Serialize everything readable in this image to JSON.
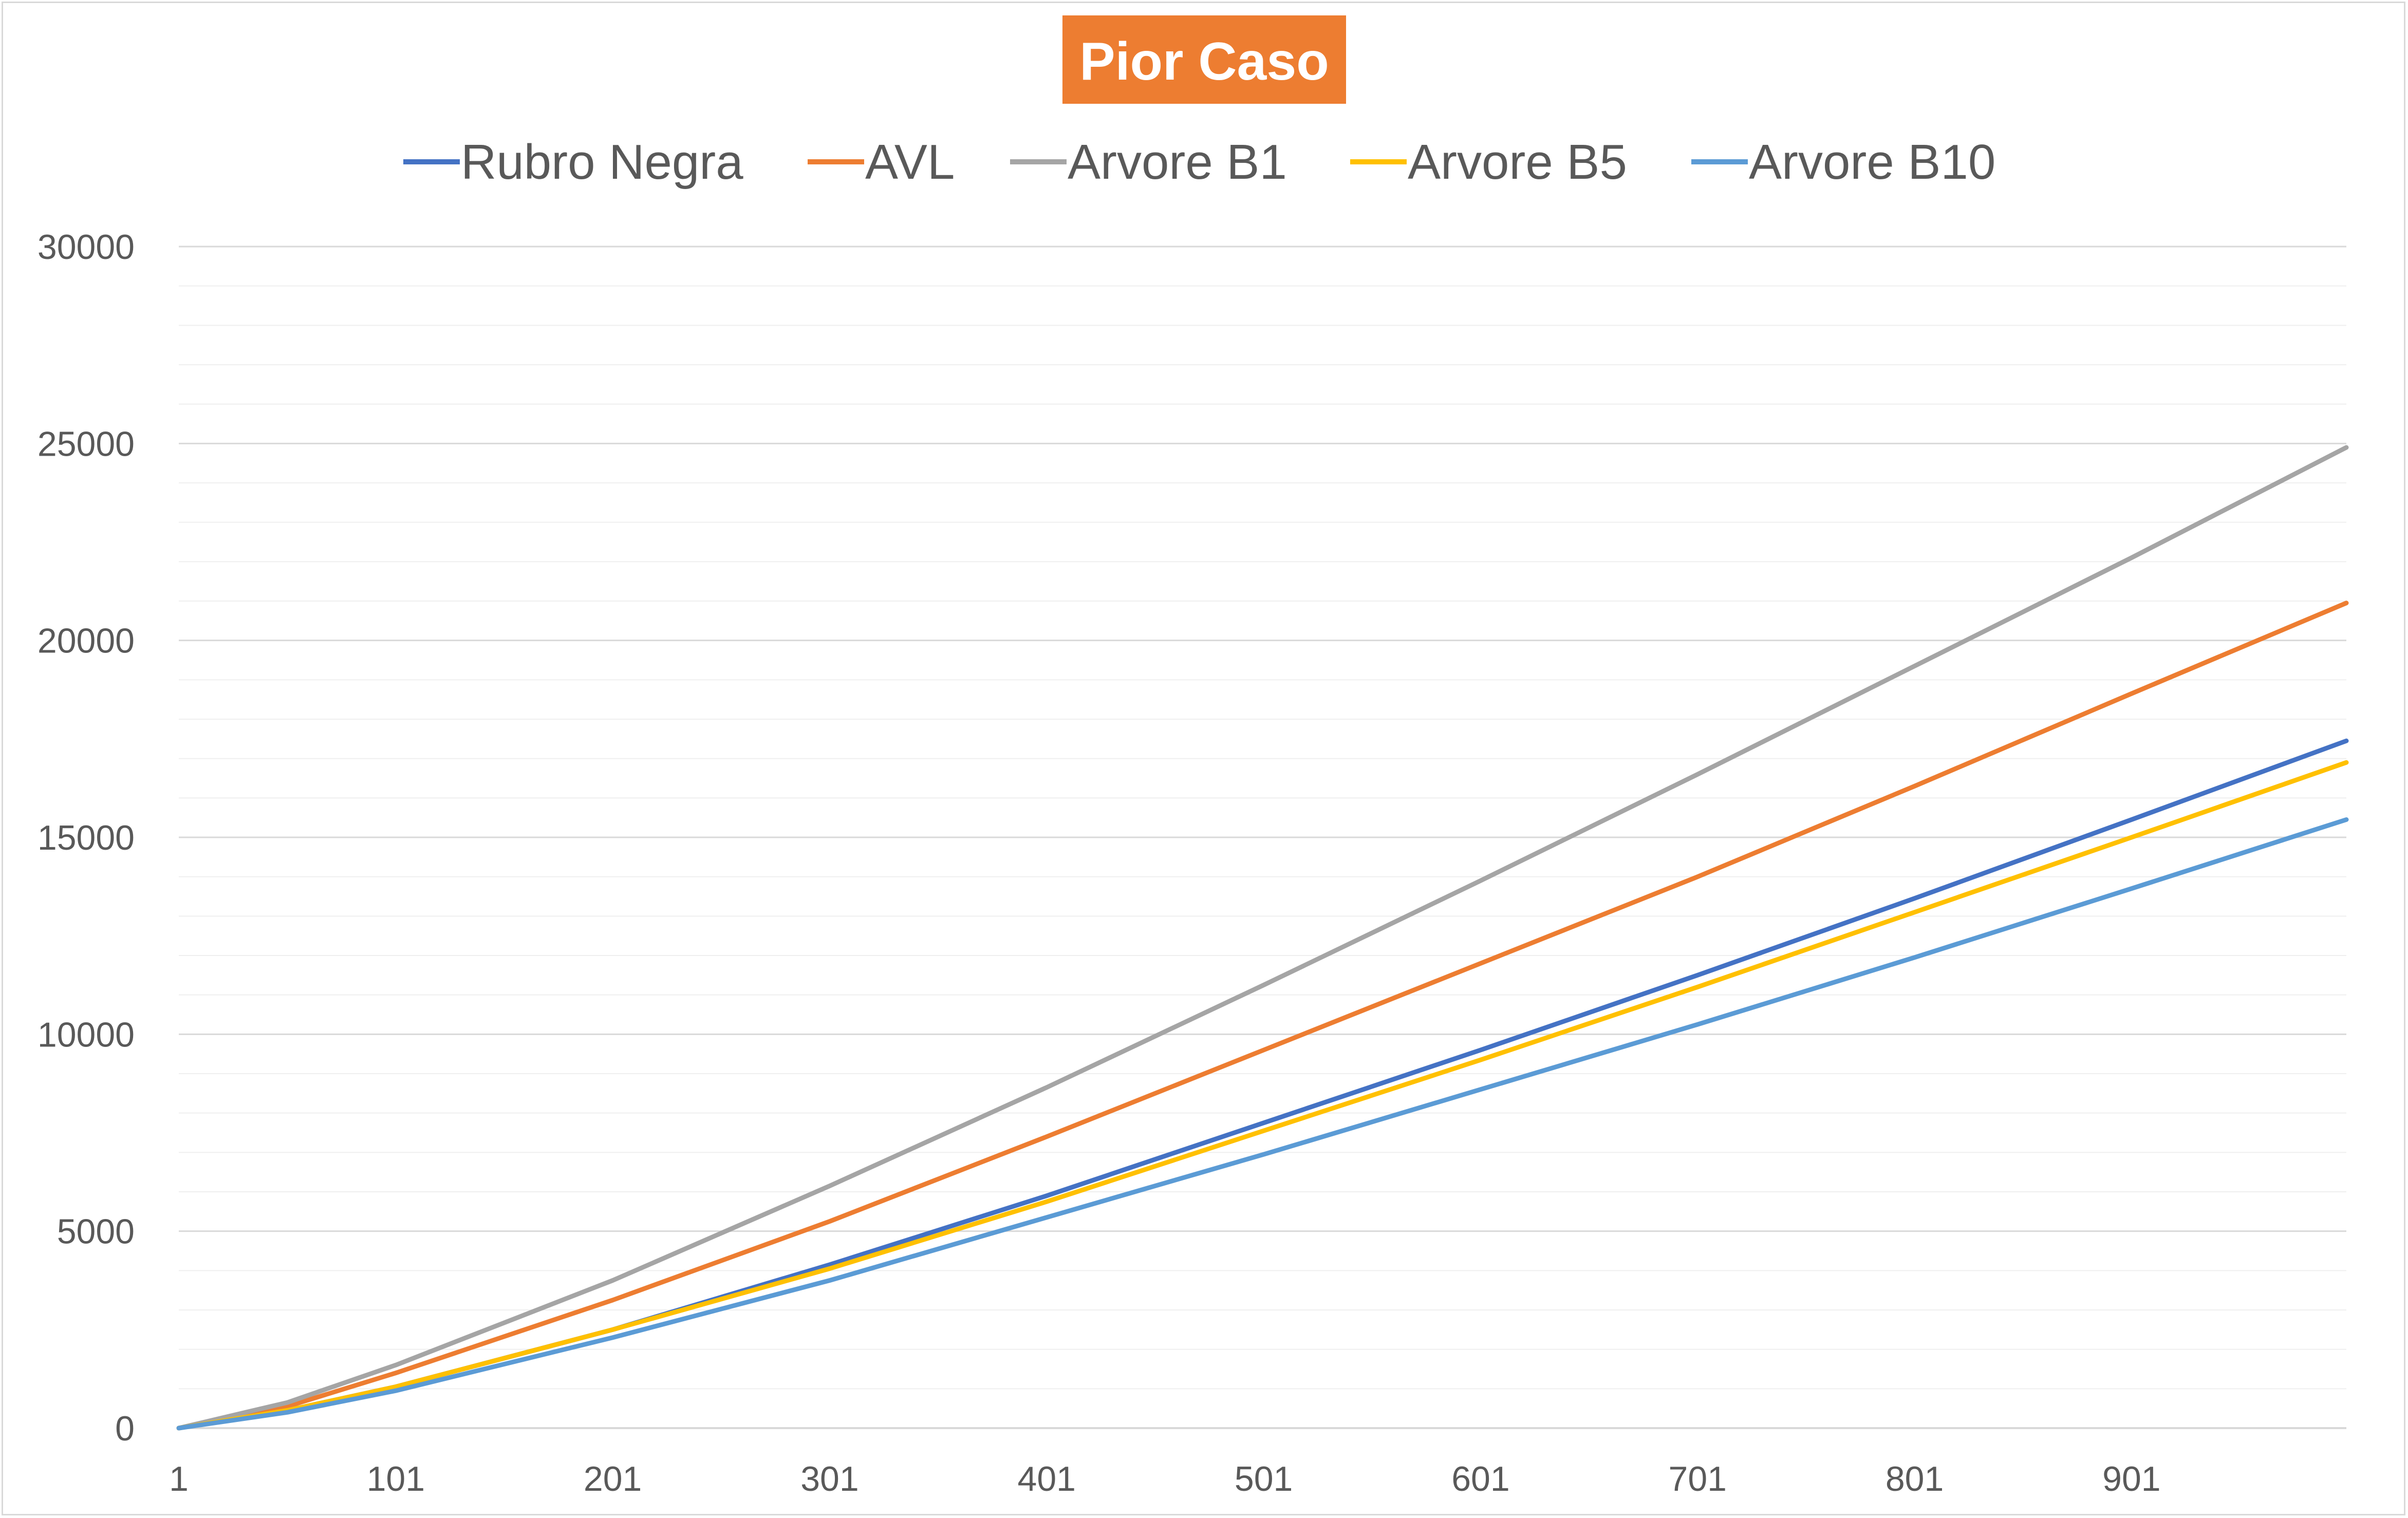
{
  "chart_data": {
    "type": "line",
    "title": "Pior Caso",
    "title_background": "#ed7d31",
    "xlabel": "",
    "ylabel": "",
    "x_range": [
      1,
      1000
    ],
    "x_tick_labels": [
      "1",
      "101",
      "201",
      "301",
      "401",
      "501",
      "601",
      "701",
      "801",
      "901"
    ],
    "ylim": [
      0,
      30000
    ],
    "y_tick_labels": [
      "0",
      "5000",
      "10000",
      "15000",
      "20000",
      "25000",
      "30000"
    ],
    "y_minor_step": 1000,
    "grid": true,
    "legend_position": "top",
    "series": [
      {
        "name": "Rubro Negra",
        "color": "#4472c4",
        "x": [
          1,
          51,
          101,
          201,
          301,
          401,
          501,
          601,
          701,
          801,
          901,
          1000
        ],
        "values": [
          0,
          450,
          1050,
          2500,
          4150,
          5900,
          7750,
          9600,
          11500,
          13450,
          15450,
          17450
        ]
      },
      {
        "name": "AVL",
        "color": "#ed7d31",
        "x": [
          1,
          51,
          101,
          201,
          301,
          401,
          501,
          601,
          701,
          801,
          901,
          1000
        ],
        "values": [
          0,
          550,
          1400,
          3250,
          5250,
          7400,
          9600,
          11800,
          14000,
          16300,
          18650,
          20950
        ]
      },
      {
        "name": "Arvore B1",
        "color": "#a5a5a5",
        "x": [
          1,
          51,
          101,
          201,
          301,
          401,
          501,
          601,
          701,
          801,
          901,
          1000
        ],
        "values": [
          0,
          650,
          1600,
          3750,
          6150,
          8650,
          11250,
          13900,
          16600,
          19350,
          22100,
          24900
        ]
      },
      {
        "name": "Arvore B5",
        "color": "#ffc000",
        "x": [
          1,
          51,
          101,
          201,
          301,
          401,
          501,
          601,
          701,
          801,
          901,
          1000
        ],
        "values": [
          0,
          450,
          1050,
          2500,
          4050,
          5750,
          7550,
          9350,
          11200,
          13100,
          15000,
          16900
        ]
      },
      {
        "name": "Arvore B10",
        "color": "#5b9bd5",
        "x": [
          1,
          51,
          101,
          201,
          301,
          401,
          501,
          601,
          701,
          801,
          901,
          1000
        ],
        "values": [
          0,
          400,
          950,
          2300,
          3750,
          5350,
          6950,
          8600,
          10250,
          11950,
          13700,
          15450
        ]
      }
    ]
  }
}
